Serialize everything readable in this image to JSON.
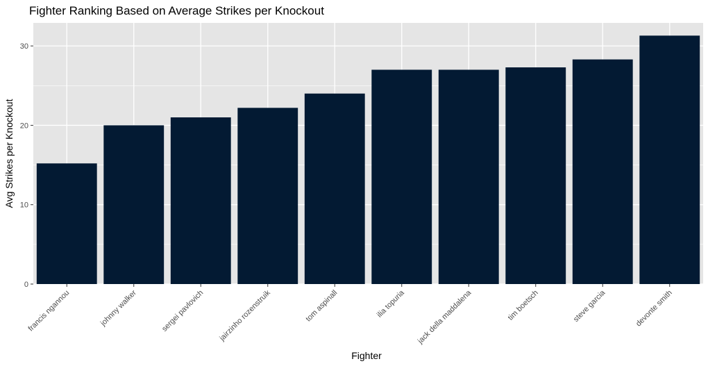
{
  "colors": {
    "panel_background": "#e5e5e5",
    "gridline": "#ffffff",
    "bar_fill": "#031a33",
    "tick_text": "#4d4d4d",
    "text": "#000000"
  },
  "chart_data": {
    "type": "bar",
    "title": "Fighter Ranking Based on Average Strikes per Knockout",
    "xlabel": "Fighter",
    "ylabel": "Avg Strikes per Knockout",
    "categories": [
      "francis ngannou",
      "johnny walker",
      "sergei pavlovich",
      "jairzinho rozenstruik",
      "tom aspinall",
      "ilia topuria",
      "jack della maddalena",
      "tim boetsch",
      "steve garcia",
      "devonte smith"
    ],
    "values": [
      15.2,
      20.0,
      21.0,
      22.2,
      24.0,
      27.0,
      27.0,
      27.3,
      28.3,
      31.3
    ],
    "yticks": [
      0,
      10,
      20,
      30
    ],
    "ylim": [
      0,
      32.9
    ],
    "grid": true,
    "legend": "none"
  }
}
